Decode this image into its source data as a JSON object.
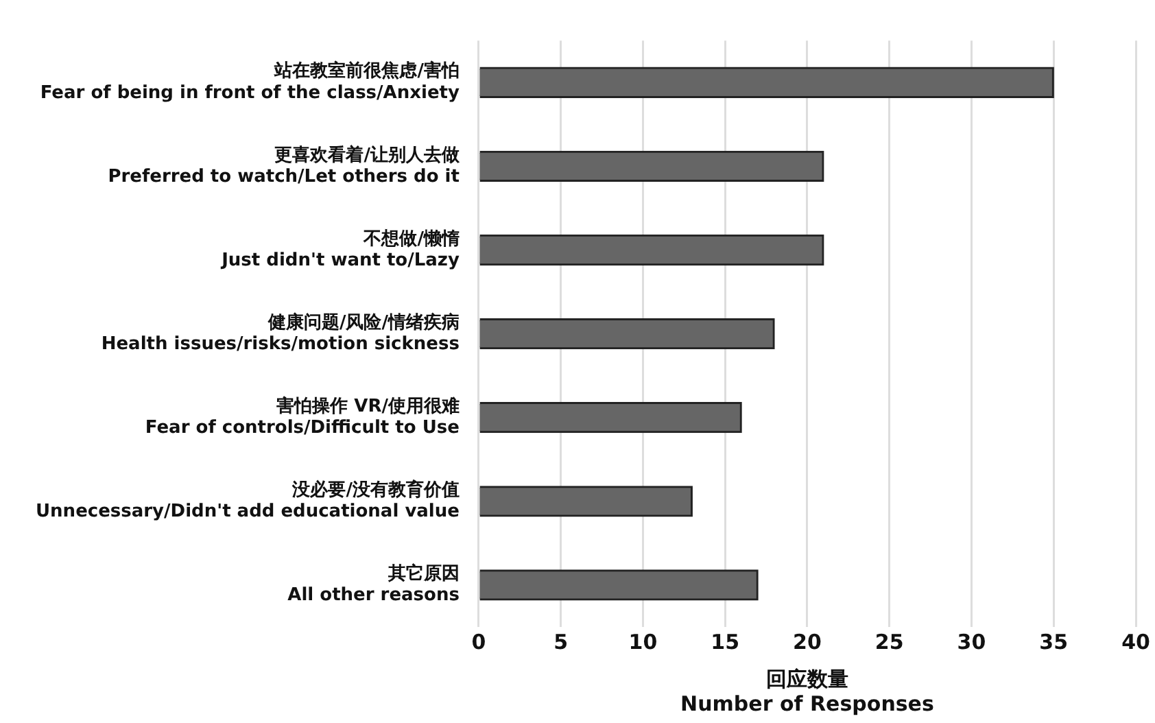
{
  "chart_data": {
    "type": "bar",
    "orientation": "horizontal",
    "categories": [
      "站在教室前很焦虑/害怕\nFear of being in front of the class/Anxiety",
      "更喜欢看着/让别人去做\nPreferred to watch/Let others do it",
      "不想做/懒惰\nJust didn't want to/Lazy",
      "健康问题/风险/情绪疾病\nHealth issues/risks/motion sickness",
      "害怕操作 VR/使用很难\nFear of controls/Difficult to Use",
      "没必要/没有教育价值\nUnnecessary/Didn't add educational value",
      "其它原因\nAll other reasons"
    ],
    "values": [
      35,
      21,
      21,
      18,
      16,
      13,
      17
    ],
    "color": "#666666",
    "xlabel": "回应数量\nNumber of Responses",
    "xlim": [
      0,
      40
    ],
    "xticks": [
      0,
      5,
      10,
      15,
      20,
      25,
      30,
      35,
      40
    ],
    "grid": "x",
    "legend": false
  }
}
